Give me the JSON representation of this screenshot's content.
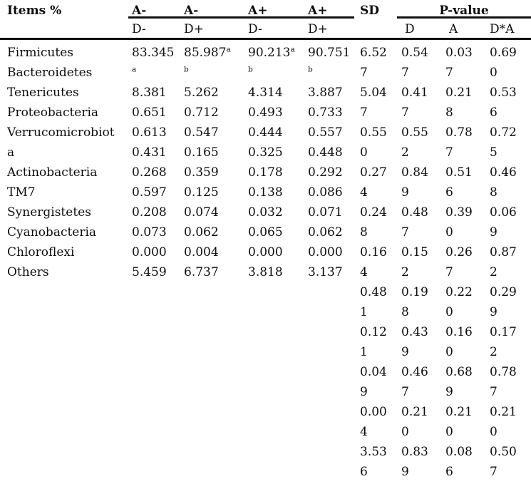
{
  "header": {
    "items_label": "Items %",
    "group_cols": [
      {
        "top": "A-",
        "sub": "D-"
      },
      {
        "top": "A-",
        "sub": "D+"
      },
      {
        "top": "A+",
        "sub": "D-"
      },
      {
        "top": "A+",
        "sub": "D+"
      }
    ],
    "sd_label": "SD",
    "pvalue_label": "P-value",
    "pvalue_subs": [
      "D",
      "A",
      "D*A"
    ]
  },
  "body_columns": [
    {
      "id": "items",
      "lines": [
        "Firmicutes",
        "Bacteroidetes",
        "Tenericutes",
        "Proteobacteria",
        "Verrucomicrobiot",
        "a",
        "Actinobacteria",
        "TM7",
        "Synergistetes",
        "Cyanobacteria",
        "Chloroflexi",
        "Others"
      ]
    },
    {
      "id": "a-minus-d-minus",
      "lines": [
        "83.345",
        "^a",
        "8.381",
        "0.651",
        "0.613",
        "0.431",
        "0.268",
        "0.597",
        "0.208",
        "0.073",
        "0.000",
        "5.459"
      ]
    },
    {
      "id": "a-minus-d-plus",
      "lines": [
        "85.987^a",
        "^b",
        "5.262",
        "0.712",
        "0.547",
        "0.165",
        "0.359",
        "0.125",
        "0.074",
        "0.062",
        "0.004",
        "6.737"
      ]
    },
    {
      "id": "a-plus-d-minus",
      "lines": [
        "90.213^a",
        "^b",
        "4.314",
        "0.493",
        "0.444",
        "0.325",
        "0.178",
        "0.138",
        "0.032",
        "0.065",
        "0.000",
        "3.818"
      ]
    },
    {
      "id": "a-plus-d-plus",
      "lines": [
        "90.751",
        "^b",
        "3.887",
        "0.733",
        "0.557",
        "0.448",
        "0.292",
        "0.086",
        "0.071",
        "0.062",
        "0.000",
        "3.137"
      ]
    },
    {
      "id": "sd",
      "lines": [
        "6.52",
        "7",
        "5.04",
        "7",
        "0.55",
        "0",
        "0.27",
        "4",
        "0.24",
        "8",
        "0.16",
        "4",
        "0.48",
        "1",
        "0.12",
        "1",
        "0.04",
        "9",
        "0.00",
        "4",
        "3.53",
        "6"
      ]
    },
    {
      "id": "p-d",
      "lines": [
        "0.54",
        "7",
        "0.41",
        "7",
        "0.55",
        "2",
        "0.84",
        "9",
        "0.48",
        "7",
        "0.15",
        "2",
        "0.19",
        "8",
        "0.43",
        "9",
        "0.46",
        "7",
        "0.21",
        "0",
        "0.83",
        "9"
      ]
    },
    {
      "id": "p-a",
      "lines": [
        "0.03",
        "7",
        "0.21",
        "8",
        "0.78",
        "7",
        "0.51",
        "6",
        "0.39",
        "0",
        "0.26",
        "7",
        "0.22",
        "0",
        "0.16",
        "0",
        "0.68",
        "9",
        "0.21",
        "0",
        "0.08",
        "6"
      ]
    },
    {
      "id": "p-dxa",
      "lines": [
        "0.69",
        "0",
        "0.53",
        "6",
        "0.72",
        "5",
        "0.46",
        "8",
        "0.06",
        "9",
        "0.87",
        "2",
        "0.29",
        "9",
        "0.17",
        "2",
        "0.78",
        "7",
        "0.21",
        "0",
        "0.50",
        "7"
      ]
    }
  ],
  "chart_data": {
    "type": "table",
    "title": "Items %",
    "columns": [
      "Items %",
      "A- D-",
      "A- D+",
      "A+ D-",
      "A+ D+",
      "SD",
      "P-value D",
      "P-value A",
      "P-value D*A"
    ],
    "rows": [
      [
        "Firmicutes",
        "83.345a",
        "85.987ab",
        "90.213ab",
        "90.751b",
        "6.527",
        "0.547",
        "0.037",
        "0.690"
      ],
      [
        "Bacteroidetes",
        "8.381",
        "5.262",
        "4.314",
        "3.887",
        "5.047",
        "0.417",
        "0.218",
        "0.536"
      ],
      [
        "Tenericutes",
        "0.651",
        "0.712",
        "0.493",
        "0.733",
        "0.550",
        "0.552",
        "0.787",
        "0.725"
      ],
      [
        "Proteobacteria",
        "0.613",
        "0.547",
        "0.444",
        "0.557",
        "0.274",
        "0.849",
        "0.516",
        "0.468"
      ],
      [
        "Verrucomicrobiota",
        "0.431",
        "0.165",
        "0.325",
        "0.448",
        "0.248",
        "0.487",
        "0.390",
        "0.069"
      ],
      [
        "Actinobacteria",
        "0.268",
        "0.359",
        "0.178",
        "0.292",
        "0.164",
        "0.152",
        "0.267",
        "0.872"
      ],
      [
        "TM7",
        "0.597",
        "0.125",
        "0.138",
        "0.086",
        "0.481",
        "0.198",
        "0.220",
        "0.299"
      ],
      [
        "Synergistetes",
        "0.208",
        "0.074",
        "0.032",
        "0.071",
        "0.121",
        "0.439",
        "0.160",
        "0.172"
      ],
      [
        "Cyanobacteria",
        "0.073",
        "0.062",
        "0.065",
        "0.062",
        "0.049",
        "0.467",
        "0.689",
        "0.787"
      ],
      [
        "Chloroflexi",
        "0.000",
        "0.004",
        "0.000",
        "0.000",
        "0.004",
        "0.210",
        "0.210",
        "0.210"
      ],
      [
        "Others",
        "5.459",
        "6.737",
        "3.818",
        "3.137",
        "3.536",
        "0.839",
        "0.086",
        "0.507"
      ]
    ]
  },
  "colors": {
    "text": "#0d0d0d",
    "rule": "#111111",
    "background": "#ffffff"
  }
}
